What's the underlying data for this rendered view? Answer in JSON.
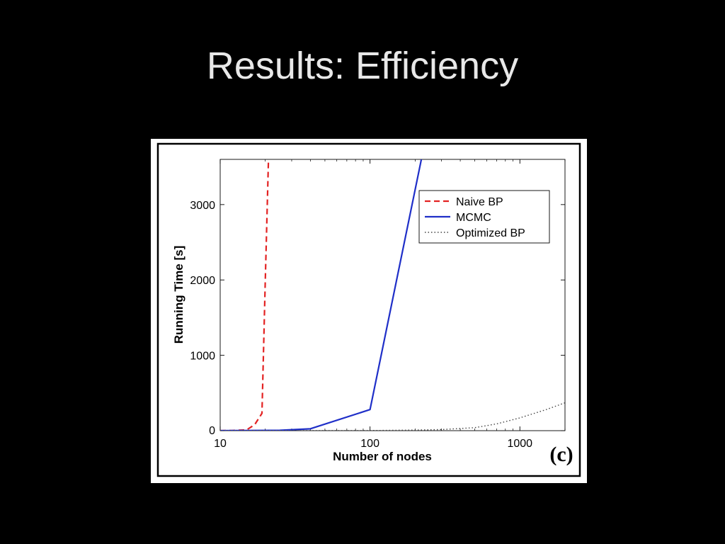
{
  "slide": {
    "title": "Results: Efficiency",
    "panel_label": "(c)"
  },
  "chart_data": {
    "type": "line",
    "title": "",
    "xlabel": "Number of nodes",
    "ylabel": "Running Time [s]",
    "xscale": "log",
    "xlim": [
      10,
      2000
    ],
    "ylim": [
      0,
      3600
    ],
    "xticks": [
      {
        "value": 10,
        "label": "10"
      },
      {
        "value": 100,
        "label": "100"
      },
      {
        "value": 1000,
        "label": "1000"
      }
    ],
    "yticks": [
      {
        "value": 0,
        "label": "0"
      },
      {
        "value": 1000,
        "label": "1000"
      },
      {
        "value": 2000,
        "label": "2000"
      },
      {
        "value": 3000,
        "label": "3000"
      }
    ],
    "grid": false,
    "legend_position": "top-right",
    "series": [
      {
        "name": "Naive BP",
        "color": "#e32222",
        "style": "dashed",
        "x": [
          10,
          12,
          15,
          17,
          19,
          20,
          21
        ],
        "y": [
          0,
          2,
          10,
          80,
          230,
          2000,
          3600
        ]
      },
      {
        "name": "MCMC",
        "color": "#1f2fc8",
        "style": "solid",
        "x": [
          10,
          25,
          40,
          100,
          220
        ],
        "y": [
          0,
          5,
          25,
          280,
          3600
        ]
      },
      {
        "name": "Optimized BP",
        "color": "#444444",
        "style": "dotted",
        "x": [
          10,
          100,
          200,
          300,
          500,
          700,
          1000,
          1500,
          2000
        ],
        "y": [
          0,
          2,
          8,
          15,
          40,
          90,
          170,
          280,
          370
        ]
      }
    ]
  }
}
